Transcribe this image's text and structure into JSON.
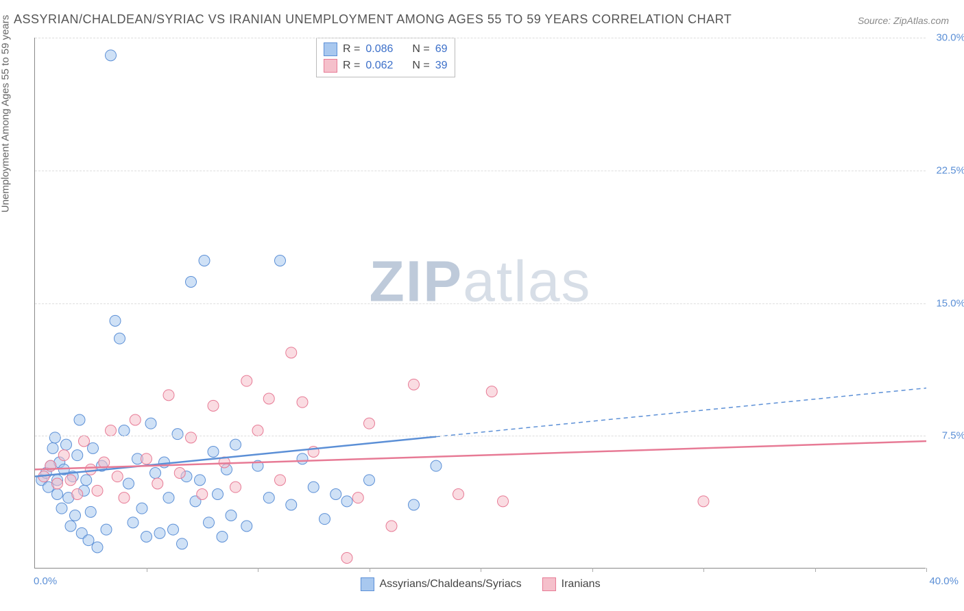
{
  "title": "ASSYRIAN/CHALDEAN/SYRIAC VS IRANIAN UNEMPLOYMENT AMONG AGES 55 TO 59 YEARS CORRELATION CHART",
  "source_label": "Source: ZipAtlas.com",
  "y_axis_label": "Unemployment Among Ages 55 to 59 years",
  "watermark": {
    "part1": "ZIP",
    "part2": "atlas"
  },
  "chart": {
    "type": "scatter",
    "xlim": [
      0,
      40
    ],
    "ylim": [
      0,
      30
    ],
    "x_origin_label": "0.0%",
    "x_max_label": "40.0%",
    "y_ticks": [
      7.5,
      15.0,
      22.5,
      30.0
    ],
    "y_tick_labels": [
      "7.5%",
      "15.0%",
      "22.5%",
      "30.0%"
    ],
    "x_tick_positions": [
      5,
      10,
      15,
      20,
      25,
      30,
      35,
      40
    ],
    "background_color": "#ffffff",
    "grid_color": "#dddddd",
    "marker_radius": 8,
    "marker_opacity": 0.55,
    "series": [
      {
        "name": "Assyrians/Chaldeans/Syriacs",
        "color_fill": "#a8c8ef",
        "color_stroke": "#5b8fd6",
        "r": 0.086,
        "n": 69,
        "trend": {
          "y_at_x0": 5.2,
          "y_at_xmax": 10.2,
          "solid_until_x": 18,
          "stroke_width": 2.5
        },
        "points": [
          [
            0.3,
            5.0
          ],
          [
            0.5,
            5.4
          ],
          [
            0.6,
            4.6
          ],
          [
            0.7,
            5.8
          ],
          [
            0.8,
            6.8
          ],
          [
            0.9,
            7.4
          ],
          [
            1.0,
            4.2
          ],
          [
            1.0,
            5.0
          ],
          [
            1.1,
            6.0
          ],
          [
            1.2,
            3.4
          ],
          [
            1.3,
            5.6
          ],
          [
            1.4,
            7.0
          ],
          [
            1.5,
            4.0
          ],
          [
            1.6,
            2.4
          ],
          [
            1.7,
            5.2
          ],
          [
            1.8,
            3.0
          ],
          [
            1.9,
            6.4
          ],
          [
            2.0,
            8.4
          ],
          [
            2.1,
            2.0
          ],
          [
            2.2,
            4.4
          ],
          [
            2.3,
            5.0
          ],
          [
            2.4,
            1.6
          ],
          [
            2.5,
            3.2
          ],
          [
            2.6,
            6.8
          ],
          [
            2.8,
            1.2
          ],
          [
            3.0,
            5.8
          ],
          [
            3.2,
            2.2
          ],
          [
            3.4,
            29.0
          ],
          [
            3.6,
            14.0
          ],
          [
            3.8,
            13.0
          ],
          [
            4.0,
            7.8
          ],
          [
            4.2,
            4.8
          ],
          [
            4.4,
            2.6
          ],
          [
            4.6,
            6.2
          ],
          [
            4.8,
            3.4
          ],
          [
            5.0,
            1.8
          ],
          [
            5.2,
            8.2
          ],
          [
            5.4,
            5.4
          ],
          [
            5.6,
            2.0
          ],
          [
            5.8,
            6.0
          ],
          [
            6.0,
            4.0
          ],
          [
            6.2,
            2.2
          ],
          [
            6.4,
            7.6
          ],
          [
            6.6,
            1.4
          ],
          [
            6.8,
            5.2
          ],
          [
            7.0,
            16.2
          ],
          [
            7.2,
            3.8
          ],
          [
            7.4,
            5.0
          ],
          [
            7.6,
            17.4
          ],
          [
            7.8,
            2.6
          ],
          [
            8.0,
            6.6
          ],
          [
            8.2,
            4.2
          ],
          [
            8.4,
            1.8
          ],
          [
            8.6,
            5.6
          ],
          [
            8.8,
            3.0
          ],
          [
            9.0,
            7.0
          ],
          [
            9.5,
            2.4
          ],
          [
            10.0,
            5.8
          ],
          [
            10.5,
            4.0
          ],
          [
            11.0,
            17.4
          ],
          [
            11.5,
            3.6
          ],
          [
            12.0,
            6.2
          ],
          [
            12.5,
            4.6
          ],
          [
            13.0,
            2.8
          ],
          [
            13.5,
            4.2
          ],
          [
            14.0,
            3.8
          ],
          [
            15.0,
            5.0
          ],
          [
            17.0,
            3.6
          ],
          [
            18.0,
            5.8
          ]
        ]
      },
      {
        "name": "Iranians",
        "color_fill": "#f5c0cb",
        "color_stroke": "#e77a95",
        "r": 0.062,
        "n": 39,
        "trend": {
          "y_at_x0": 5.6,
          "y_at_xmax": 7.2,
          "solid_until_x": 40,
          "stroke_width": 2.5
        },
        "points": [
          [
            0.4,
            5.2
          ],
          [
            0.7,
            5.8
          ],
          [
            1.0,
            4.8
          ],
          [
            1.3,
            6.4
          ],
          [
            1.6,
            5.0
          ],
          [
            1.9,
            4.2
          ],
          [
            2.2,
            7.2
          ],
          [
            2.5,
            5.6
          ],
          [
            2.8,
            4.4
          ],
          [
            3.1,
            6.0
          ],
          [
            3.4,
            7.8
          ],
          [
            3.7,
            5.2
          ],
          [
            4.0,
            4.0
          ],
          [
            4.5,
            8.4
          ],
          [
            5.0,
            6.2
          ],
          [
            5.5,
            4.8
          ],
          [
            6.0,
            9.8
          ],
          [
            6.5,
            5.4
          ],
          [
            7.0,
            7.4
          ],
          [
            7.5,
            4.2
          ],
          [
            8.0,
            9.2
          ],
          [
            8.5,
            6.0
          ],
          [
            9.0,
            4.6
          ],
          [
            9.5,
            10.6
          ],
          [
            10.0,
            7.8
          ],
          [
            10.5,
            9.6
          ],
          [
            11.0,
            5.0
          ],
          [
            11.5,
            12.2
          ],
          [
            12.0,
            9.4
          ],
          [
            12.5,
            6.6
          ],
          [
            14.0,
            0.6
          ],
          [
            14.5,
            4.0
          ],
          [
            15.0,
            8.2
          ],
          [
            16.0,
            2.4
          ],
          [
            17.0,
            10.4
          ],
          [
            19.0,
            4.2
          ],
          [
            20.5,
            10.0
          ],
          [
            21.0,
            3.8
          ],
          [
            30.0,
            3.8
          ]
        ]
      }
    ]
  },
  "stats_box": {
    "r_label": "R =",
    "n_label": "N ="
  },
  "legend": {
    "series1_label": "Assyrians/Chaldeans/Syriacs",
    "series2_label": "Iranians"
  }
}
